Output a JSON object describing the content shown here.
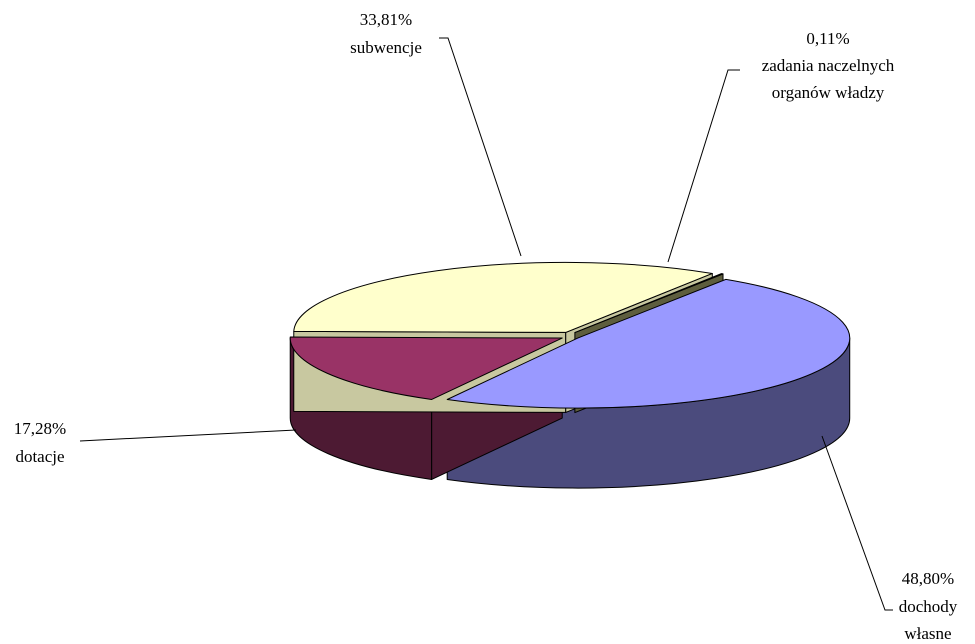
{
  "chart_data": {
    "type": "pie",
    "title": "",
    "is_3d": true,
    "exploded": true,
    "legend": "none",
    "slices": [
      {
        "label": "dochody własne",
        "value": 48.8,
        "value_text": "48,80%",
        "color": "#9999ff",
        "side_color": "#4b4b7d"
      },
      {
        "label": "dotacje",
        "value": 17.28,
        "value_text": "17,28%",
        "color": "#993366",
        "side_color": "#4d1a33"
      },
      {
        "label": "subwencje",
        "value": 33.81,
        "value_text": "33,81%",
        "color": "#ffffcc",
        "side_color": "#c8c8a0"
      },
      {
        "label": "zadania naczelnych organów władzy",
        "value": 0.11,
        "value_text": "0,11%",
        "color": "#999966",
        "side_color": "#5e5e3e"
      }
    ],
    "slice_labels": [
      {
        "value_text": "48,80%",
        "lines": [
          "dochody",
          "własne"
        ]
      },
      {
        "value_text": "17,28%",
        "lines": [
          "dotacje"
        ]
      },
      {
        "value_text": "33,81%",
        "lines": [
          "subwencje"
        ]
      },
      {
        "value_text": "0,11%",
        "lines": [
          "zadania naczelnych",
          "organów władzy"
        ]
      }
    ]
  }
}
